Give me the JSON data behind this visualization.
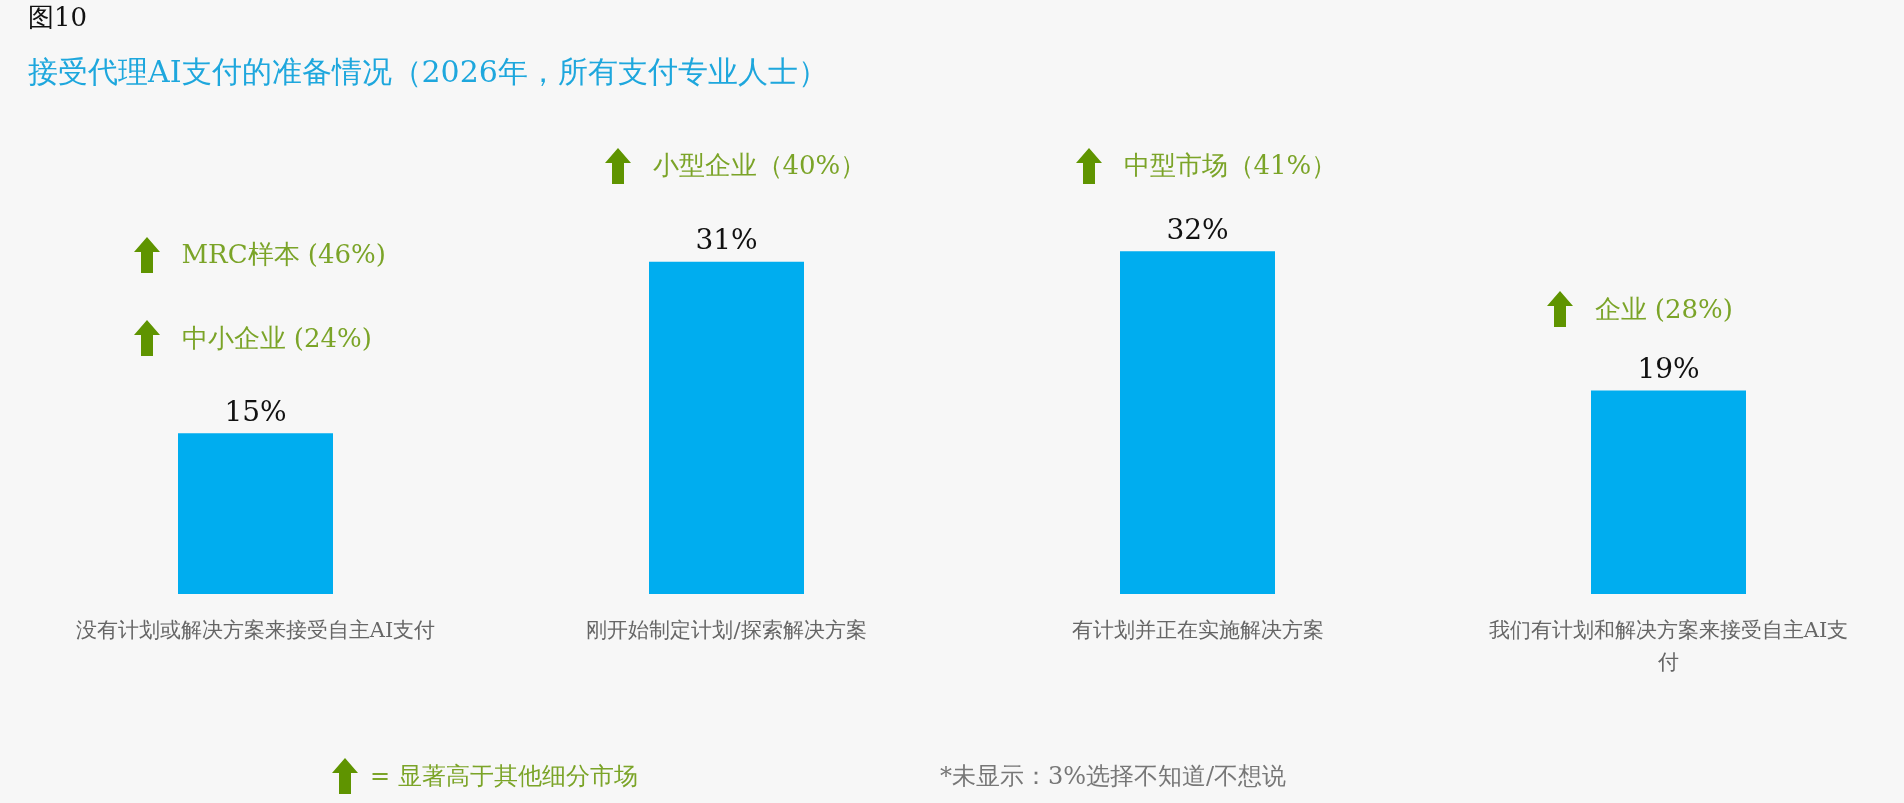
{
  "chart_data": {
    "type": "bar",
    "title": "图10",
    "subtitle": "接受代理AI支付的准备情况（2026年，所有支付专业人士）",
    "categories": [
      "没有计划或解决方案来接受自主AI支付",
      "刚开始制定计划/探索解决方案",
      "有计划并正在实施解决方案",
      "我们有计划和解决方案来接受自主AI支付"
    ],
    "values": [
      15,
      31,
      32,
      19
    ],
    "color": "#00adef",
    "value_labels": [
      "15%",
      "31%",
      "32%",
      "19%"
    ],
    "grid": false,
    "annotations": [
      "MRC样本 (46%)",
      "中小企业 (24%)",
      "小型企业（40%）",
      "中型市场（41%）",
      "企业 (28%)",
      "= 显著高于其他细分市场",
      "*未显示：3%选择不知道/不想说"
    ]
  }
}
